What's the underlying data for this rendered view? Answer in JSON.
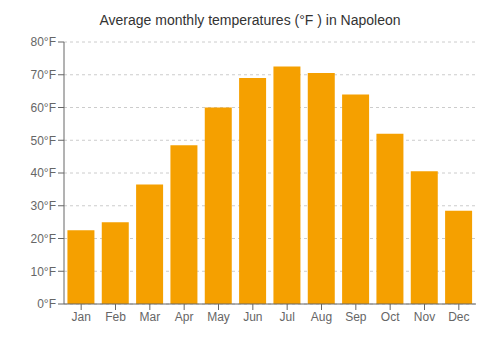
{
  "chart_data": {
    "type": "bar",
    "title": "Average monthly temperatures (°F ) in Napoleon",
    "categories": [
      "Jan",
      "Feb",
      "Mar",
      "Apr",
      "May",
      "Jun",
      "Jul",
      "Aug",
      "Sep",
      "Oct",
      "Nov",
      "Dec"
    ],
    "values": [
      22.5,
      25.0,
      36.5,
      48.5,
      60.0,
      69.0,
      72.5,
      70.5,
      64.0,
      52.0,
      40.5,
      28.5
    ],
    "color": "#F5A000",
    "ylim": [
      0,
      80
    ],
    "yticks": [
      {
        "value": 0,
        "label": "0°F"
      },
      {
        "value": 10,
        "label": "10°F"
      },
      {
        "value": 20,
        "label": "20°F"
      },
      {
        "value": 30,
        "label": "30°F"
      },
      {
        "value": 40,
        "label": "40°F"
      },
      {
        "value": 50,
        "label": "50°F"
      },
      {
        "value": 60,
        "label": "60°F"
      },
      {
        "value": 70,
        "label": "70°F"
      },
      {
        "value": 80,
        "label": "80°F"
      }
    ],
    "grid": true
  }
}
